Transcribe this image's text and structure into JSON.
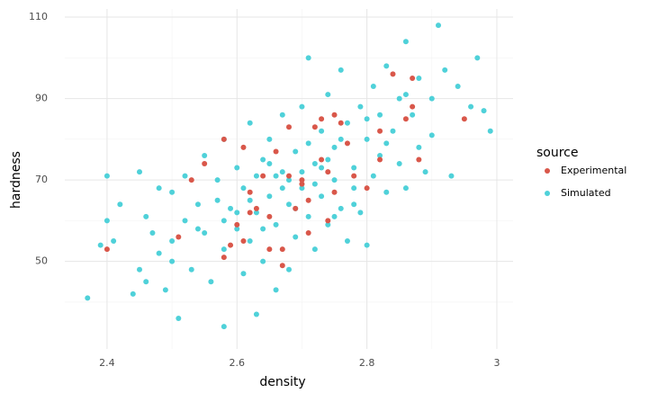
{
  "chart_data": {
    "type": "scatter",
    "x_label": "density",
    "y_label": "hardness",
    "xlim": [
      2.335,
      3.025
    ],
    "ylim": [
      28.5,
      112
    ],
    "xticks": [
      2.4,
      2.6,
      2.8,
      3
    ],
    "yticks": [
      50,
      70,
      90,
      110
    ],
    "xminor": [
      2.5,
      2.7,
      2.9
    ],
    "yminor": [
      40,
      60,
      80,
      100
    ],
    "grid": true,
    "legend_title": "source",
    "legend_position": "right",
    "series": [
      {
        "name": "Experimental",
        "color": "#d9574a",
        "x": [
          2.4,
          2.51,
          2.53,
          2.55,
          2.58,
          2.58,
          2.59,
          2.6,
          2.61,
          2.61,
          2.62,
          2.63,
          2.64,
          2.65,
          2.65,
          2.66,
          2.67,
          2.67,
          2.68,
          2.68,
          2.69,
          2.7,
          2.71,
          2.71,
          2.72,
          2.73,
          2.73,
          2.74,
          2.75,
          2.75,
          2.76,
          2.77,
          2.78,
          2.8,
          2.82,
          2.82,
          2.84,
          2.86,
          2.87,
          2.87,
          2.88,
          2.95,
          2.62,
          2.7,
          2.74
        ],
        "y": [
          53,
          56,
          70,
          74,
          51,
          80,
          54,
          59,
          55,
          78,
          67,
          63,
          71,
          53,
          61,
          77,
          53,
          49,
          71,
          83,
          63,
          70,
          65,
          57,
          83,
          85,
          75,
          72,
          67,
          86,
          84,
          79,
          71,
          68,
          75,
          82,
          96,
          85,
          95,
          88,
          75,
          85,
          62,
          69,
          60
        ]
      },
      {
        "name": "Simulated",
        "color": "#4fd1d9",
        "x": [
          2.37,
          2.4,
          2.4,
          2.39,
          2.41,
          2.42,
          2.44,
          2.45,
          2.45,
          2.46,
          2.46,
          2.47,
          2.48,
          2.48,
          2.49,
          2.5,
          2.5,
          2.51,
          2.52,
          2.52,
          2.53,
          2.54,
          2.55,
          2.55,
          2.56,
          2.57,
          2.58,
          2.58,
          2.58,
          2.59,
          2.6,
          2.6,
          2.61,
          2.61,
          2.62,
          2.62,
          2.63,
          2.63,
          2.64,
          2.64,
          2.65,
          2.65,
          2.66,
          2.66,
          2.67,
          2.67,
          2.68,
          2.68,
          2.69,
          2.69,
          2.7,
          2.7,
          2.71,
          2.71,
          2.72,
          2.72,
          2.73,
          2.73,
          2.74,
          2.74,
          2.75,
          2.75,
          2.76,
          2.76,
          2.77,
          2.77,
          2.78,
          2.78,
          2.79,
          2.79,
          2.8,
          2.8,
          2.81,
          2.81,
          2.82,
          2.82,
          2.83,
          2.83,
          2.84,
          2.85,
          2.85,
          2.86,
          2.86,
          2.87,
          2.88,
          2.88,
          2.89,
          2.9,
          2.9,
          2.91,
          2.92,
          2.93,
          2.94,
          2.96,
          2.97,
          2.98,
          2.99,
          2.68,
          2.7,
          2.72,
          2.66,
          2.74,
          2.62,
          2.58,
          2.64,
          2.76,
          2.8,
          2.6,
          2.54,
          2.5,
          2.78,
          2.69,
          2.71,
          2.67,
          2.73,
          2.65,
          2.57,
          2.83,
          2.86,
          2.75,
          2.63
        ],
        "y": [
          41,
          71,
          60,
          54,
          55,
          64,
          42,
          72,
          48,
          45,
          61,
          57,
          52,
          68,
          43,
          67,
          55,
          36,
          60,
          71,
          48,
          64,
          76,
          57,
          45,
          70,
          53,
          34,
          80,
          63,
          58,
          73,
          47,
          68,
          84,
          55,
          37,
          62,
          75,
          50,
          66,
          80,
          43,
          59,
          72,
          86,
          64,
          48,
          77,
          56,
          68,
          88,
          61,
          100,
          74,
          53,
          82,
          66,
          91,
          59,
          70,
          78,
          63,
          97,
          84,
          55,
          73,
          68,
          88,
          62,
          80,
          54,
          93,
          71,
          76,
          86,
          67,
          98,
          82,
          90,
          74,
          104,
          68,
          86,
          78,
          95,
          72,
          90,
          81,
          108,
          97,
          71,
          93,
          88,
          100,
          87,
          82,
          70,
          72,
          69,
          71,
          75,
          65,
          60,
          58,
          80,
          85,
          62,
          58,
          50,
          64,
          63,
          79,
          68,
          73,
          74,
          65,
          79,
          91,
          61,
          71
        ]
      }
    ]
  }
}
